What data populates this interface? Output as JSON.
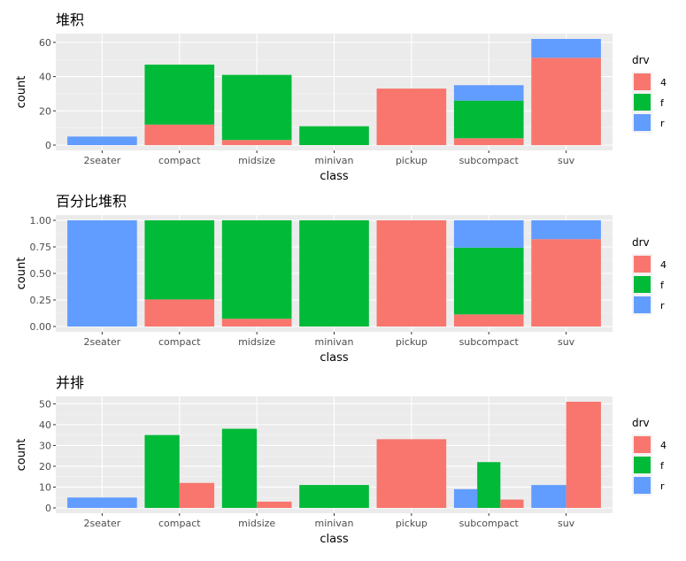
{
  "colors": {
    "4": "#F8766D",
    "f": "#00BA38",
    "r": "#619CFF"
  },
  "chart_data": [
    {
      "type": "bar",
      "position": "stack",
      "title": "堆积",
      "xlabel": "class",
      "ylabel": "count",
      "ylim": [
        0,
        62
      ],
      "yticks": [
        0,
        20,
        40,
        60
      ],
      "ytick_labels": [
        "0",
        "20",
        "40",
        "60"
      ],
      "categories": [
        "2seater",
        "compact",
        "midsize",
        "minivan",
        "pickup",
        "subcompact",
        "suv"
      ],
      "series": [
        {
          "name": "4",
          "values": [
            0,
            12,
            3,
            0,
            33,
            4,
            51
          ]
        },
        {
          "name": "f",
          "values": [
            0,
            35,
            38,
            11,
            0,
            22,
            0
          ]
        },
        {
          "name": "r",
          "values": [
            5,
            0,
            0,
            0,
            0,
            9,
            11
          ]
        }
      ],
      "legend": {
        "title": "drv",
        "placement": "right",
        "entries": [
          "4",
          "f",
          "r"
        ]
      }
    },
    {
      "type": "bar",
      "position": "fill",
      "title": "百分比堆积",
      "xlabel": "class",
      "ylabel": "count",
      "ylim": [
        0,
        1
      ],
      "yticks": [
        0,
        0.25,
        0.5,
        0.75,
        1
      ],
      "ytick_labels": [
        "0.00",
        "0.25",
        "0.50",
        "0.75",
        "1.00"
      ],
      "categories": [
        "2seater",
        "compact",
        "midsize",
        "minivan",
        "pickup",
        "subcompact",
        "suv"
      ],
      "series": [
        {
          "name": "4",
          "values": [
            0,
            0.255,
            0.073,
            0,
            1,
            0.114,
            0.823
          ]
        },
        {
          "name": "f",
          "values": [
            0,
            0.745,
            0.927,
            1,
            0,
            0.629,
            0
          ]
        },
        {
          "name": "r",
          "values": [
            1,
            0,
            0,
            0,
            0,
            0.257,
            0.177
          ]
        }
      ],
      "legend": {
        "title": "drv",
        "placement": "right",
        "entries": [
          "4",
          "f",
          "r"
        ]
      }
    },
    {
      "type": "bar",
      "position": "dodge",
      "title": "并排",
      "xlabel": "class",
      "ylabel": "count",
      "ylim": [
        0,
        51
      ],
      "yticks": [
        0,
        10,
        20,
        30,
        40,
        50
      ],
      "ytick_labels": [
        "0",
        "10",
        "20",
        "30",
        "40",
        "50"
      ],
      "categories": [
        "2seater",
        "compact",
        "midsize",
        "minivan",
        "pickup",
        "subcompact",
        "suv"
      ],
      "series": [
        {
          "name": "4",
          "values": [
            0,
            12,
            3,
            0,
            33,
            4,
            51
          ]
        },
        {
          "name": "f",
          "values": [
            0,
            35,
            38,
            11,
            0,
            22,
            0
          ]
        },
        {
          "name": "r",
          "values": [
            5,
            0,
            0,
            0,
            0,
            9,
            11
          ]
        }
      ],
      "legend": {
        "title": "drv",
        "placement": "right",
        "entries": [
          "4",
          "f",
          "r"
        ]
      }
    }
  ]
}
